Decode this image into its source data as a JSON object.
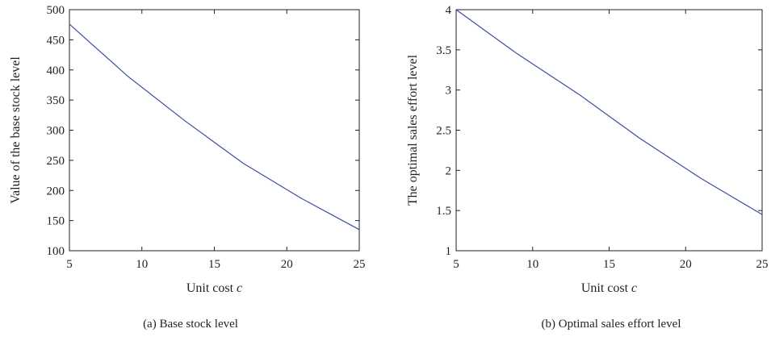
{
  "chart_data": [
    {
      "type": "line",
      "panel": "a",
      "caption": "(a)  Base stock level",
      "xlabel_text": "Unit cost ",
      "xlabel_var": "c",
      "ylabel": "Value of the base stock level",
      "xlim": [
        5,
        25
      ],
      "ylim": [
        100,
        500
      ],
      "xticks": [
        5,
        10,
        15,
        20,
        25
      ],
      "yticks": [
        100,
        150,
        200,
        250,
        300,
        350,
        400,
        450,
        500
      ],
      "grid": false,
      "series": [
        {
          "x": [
            5,
            9,
            13,
            17,
            21,
            25
          ],
          "values": [
            476,
            390,
            315,
            245,
            187,
            135
          ],
          "color": "#3a4fa0"
        }
      ]
    },
    {
      "type": "line",
      "panel": "b",
      "caption": "(b)  Optimal sales effort level",
      "xlabel_text": "Unit cost ",
      "xlabel_var": "c",
      "ylabel": "The optimal sales effort level",
      "xlim": [
        5,
        25
      ],
      "ylim": [
        1,
        4
      ],
      "xticks": [
        5,
        10,
        15,
        20,
        25
      ],
      "yticks": [
        1,
        1.5,
        2,
        2.5,
        3,
        3.5,
        4
      ],
      "grid": false,
      "series": [
        {
          "x": [
            5,
            9,
            13,
            17,
            21,
            25
          ],
          "values": [
            4.0,
            3.45,
            2.95,
            2.4,
            1.9,
            1.45
          ],
          "color": "#3a4fa0"
        }
      ]
    }
  ]
}
